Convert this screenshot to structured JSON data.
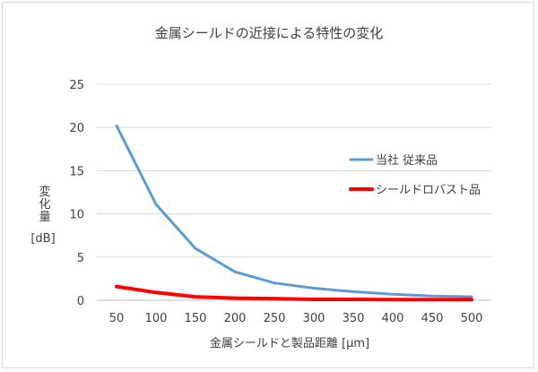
{
  "chart_data": {
    "type": "line",
    "title": "金属シールドの近接による特性の変化",
    "xlabel": "金属シールドと製品距離 [μm]",
    "ylabel_lines": [
      "変",
      "化",
      "量",
      "[dB]"
    ],
    "ylim": [
      0,
      25
    ],
    "yticks": [
      0,
      5,
      10,
      15,
      20,
      25
    ],
    "x": [
      50,
      100,
      150,
      200,
      250,
      300,
      350,
      400,
      450,
      500
    ],
    "grid": true,
    "legend_position": "right",
    "series": [
      {
        "name": "当社 従来品",
        "color": "#5b9bd5",
        "values": [
          20.2,
          11.1,
          6.0,
          3.3,
          2.0,
          1.4,
          1.0,
          0.7,
          0.5,
          0.4
        ]
      },
      {
        "name": "シールドロバスト品",
        "color": "#ff0000",
        "values": [
          1.6,
          0.9,
          0.4,
          0.25,
          0.2,
          0.1,
          0.1,
          0.08,
          0.08,
          0.08
        ]
      }
    ]
  }
}
